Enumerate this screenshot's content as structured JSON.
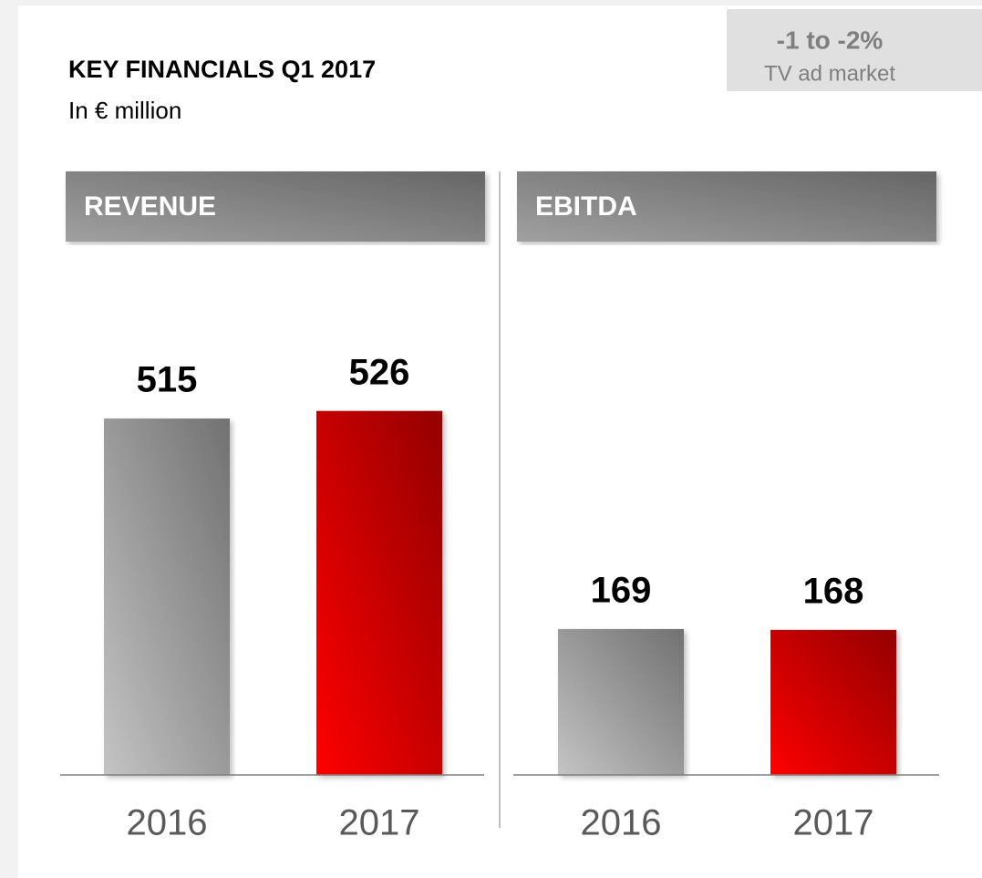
{
  "header": {
    "title": "KEY FINANCIALS Q1 2017",
    "subtitle": "In € million"
  },
  "badge": {
    "value": "-1 to -2%",
    "label": "TV ad market"
  },
  "chart_data": [
    {
      "type": "bar",
      "title": "REVENUE",
      "categories": [
        "2016",
        "2017"
      ],
      "values": [
        515,
        526
      ],
      "colors": [
        "#c4c4c4",
        "#ff0000"
      ],
      "ylim": [
        0,
        685
      ]
    },
    {
      "type": "bar",
      "title": "EBITDA",
      "categories": [
        "2016",
        "2017"
      ],
      "values": [
        169,
        168
      ],
      "colors": [
        "#c4c4c4",
        "#ff0000"
      ],
      "ylim": [
        0,
        549
      ]
    }
  ]
}
